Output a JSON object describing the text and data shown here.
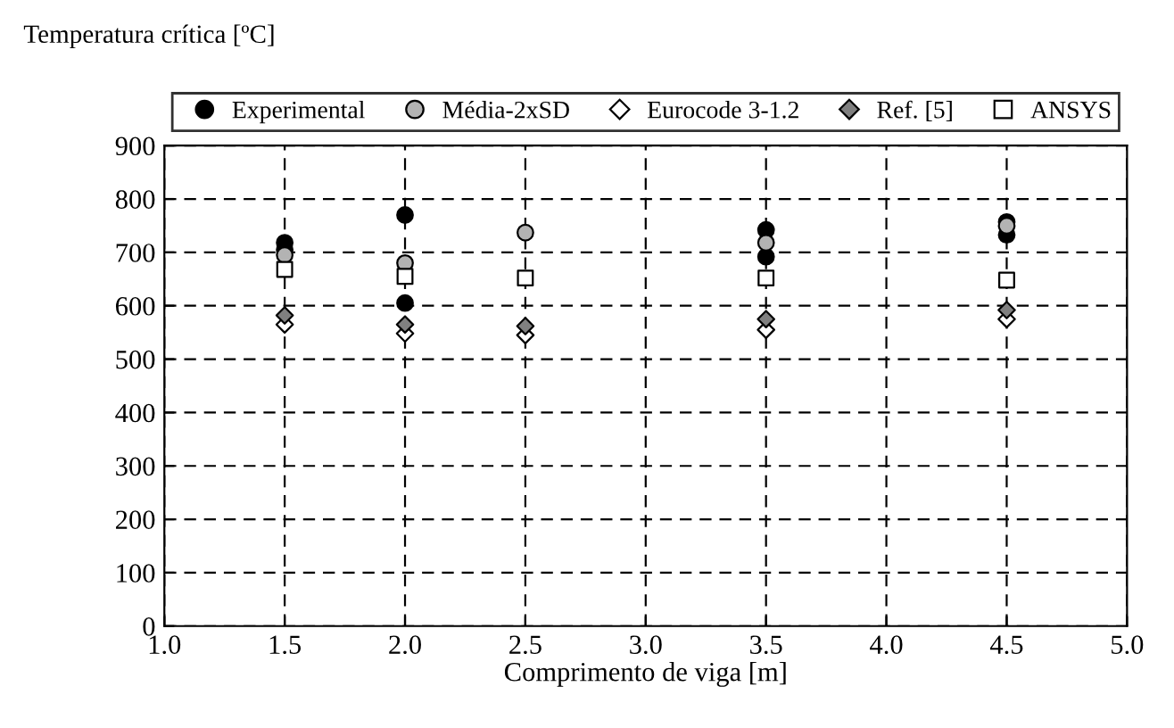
{
  "chart_data": {
    "type": "scatter",
    "ylabel": "Temperatura crítica [ºC]",
    "xlabel": "Comprimento de viga [m]",
    "xlim": [
      1.0,
      5.0
    ],
    "xticks": [
      {
        "value": 1.0,
        "label": "1.0"
      },
      {
        "value": 1.5,
        "label": "1.5"
      },
      {
        "value": 2.0,
        "label": "2.0"
      },
      {
        "value": 2.5,
        "label": "2.5"
      },
      {
        "value": 3.0,
        "label": "3.0"
      },
      {
        "value": 3.5,
        "label": "3.5"
      },
      {
        "value": 4.0,
        "label": "4.0"
      },
      {
        "value": 4.5,
        "label": "4.5"
      },
      {
        "value": 5.0,
        "label": "5.0"
      }
    ],
    "ylim": [
      0,
      900
    ],
    "yticks": [
      0,
      100,
      200,
      300,
      400,
      500,
      600,
      700,
      800,
      900
    ],
    "grid": true,
    "legend": "top",
    "series": [
      {
        "name": "Experimental",
        "color": "#000000",
        "marker": "circle",
        "x": [
          1.5,
          1.5,
          2.0,
          2.0,
          3.5,
          3.5,
          4.5,
          4.5
        ],
        "values": [
          718,
          705,
          770,
          605,
          742,
          692,
          757,
          733
        ]
      },
      {
        "name": "Média-2xSD",
        "color": "#b3b3b3",
        "marker": "circle",
        "x": [
          1.5,
          2.0,
          2.5,
          3.5,
          4.5
        ],
        "values": [
          695,
          680,
          737,
          718,
          750
        ]
      },
      {
        "name": "Eurocode 3-1.2",
        "color": "#ffffff",
        "marker": "diamond",
        "x": [
          1.5,
          2.0,
          2.5,
          3.5,
          4.5
        ],
        "values": [
          565,
          548,
          545,
          555,
          575
        ]
      },
      {
        "name": "Ref. [5]",
        "color": "#808080",
        "marker": "diamond",
        "x": [
          1.5,
          2.0,
          2.5,
          3.5,
          4.5
        ],
        "values": [
          582,
          565,
          562,
          575,
          592
        ]
      },
      {
        "name": "ANSYS",
        "color": "#ffffff",
        "marker": "square",
        "x": [
          1.5,
          2.0,
          2.5,
          3.5,
          4.5
        ],
        "values": [
          668,
          655,
          652,
          652,
          648
        ]
      }
    ]
  }
}
